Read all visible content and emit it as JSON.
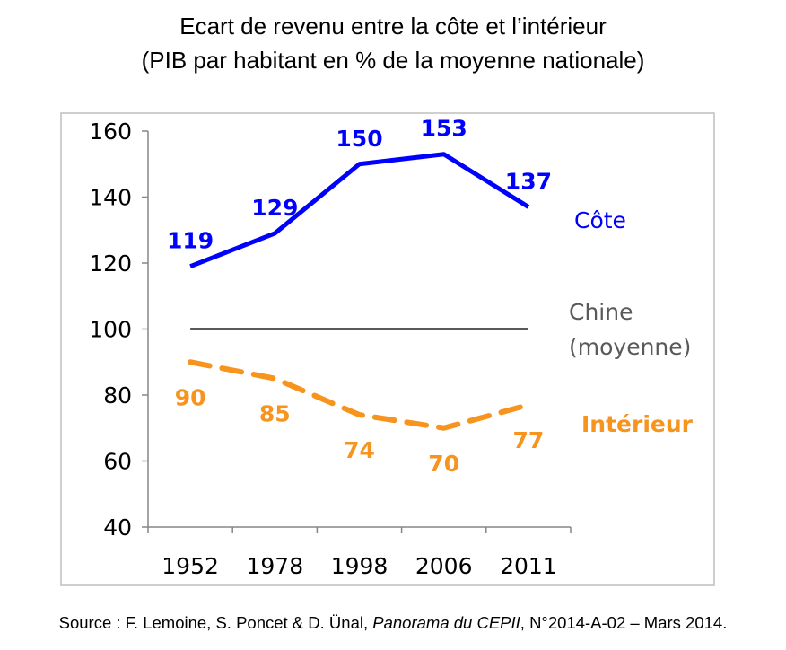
{
  "chart_data": {
    "type": "line",
    "title": "Ecart de revenu entre la côte et l’intérieur",
    "subtitle": "(PIB par habitant en % de la moyenne nationale)",
    "categories": [
      "1952",
      "1978",
      "1998",
      "2006",
      "2011"
    ],
    "ylim": [
      40,
      160
    ],
    "yticks": [
      40,
      60,
      80,
      100,
      120,
      140,
      160
    ],
    "grid": false,
    "series": [
      {
        "name": "Côte",
        "values": [
          119,
          129,
          150,
          153,
          137
        ],
        "color": "#0000ff",
        "style": "solid",
        "show_labels": true,
        "label_position": "above"
      },
      {
        "name": "Chine (moyenne)",
        "values": [
          100,
          100,
          100,
          100,
          100
        ],
        "color": "#595959",
        "style": "solid",
        "show_labels": false
      },
      {
        "name": "Intérieur",
        "values": [
          90,
          85,
          74,
          70,
          77
        ],
        "color": "#f7941d",
        "style": "dashed",
        "show_labels": true,
        "label_position": "below"
      }
    ],
    "series_labels": {
      "cote": "Côte",
      "chine_line1": "Chine",
      "chine_line2": "(moyenne)",
      "interieur": "Intérieur"
    }
  },
  "source": {
    "prefix": "Source : F. Lemoine, S. Poncet & D. Ünal, ",
    "publication": "Panorama du CEPII",
    "suffix": ", N°2014-A-02 – Mars 2014."
  }
}
